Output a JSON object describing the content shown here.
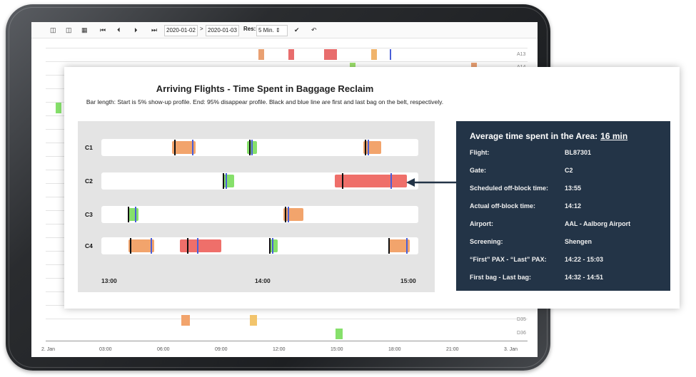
{
  "toolbar": {
    "date_from": "2020-01-02",
    "date_sep": ">",
    "date_to": "2020-01-03",
    "res_label": "Res:",
    "res_value": "5 Min.",
    "res_arrow": "⬍"
  },
  "background": {
    "rows": [
      {
        "label": "A13"
      },
      {
        "label": "A14"
      },
      {
        "label": "D35"
      },
      {
        "label": "D36"
      }
    ],
    "x_ticks": [
      "2. Jan",
      "03:00",
      "06:00",
      "09:00",
      "12:00",
      "15:00",
      "18:00",
      "21:00",
      "3. Jan"
    ]
  },
  "panel": {
    "title": "Arriving Flights - Time Spent in Baggage Reclaim",
    "subtitle": "Bar length: Start is 5% show-up profile. End: 95% disappear profile. Black and blue line are first and last bag on the belt, respectively."
  },
  "chart_data": {
    "type": "gantt",
    "title": "Arriving Flights - Time Spent in Baggage Reclaim",
    "x_ticks": [
      "13:00",
      "14:00",
      "15:00"
    ],
    "x_range": [
      "13:00",
      "15:00"
    ],
    "colors": {
      "orange": "#f2a46c",
      "green": "#86e06b",
      "red": "#ef6f6a",
      "first_bag": "#111111",
      "last_bag": "#4a5fd8"
    },
    "rows": [
      {
        "belt": "C1",
        "flights": [
          {
            "start": "13:26",
            "end": "13:35",
            "first_bag": "13:27",
            "last_bag": "13:34",
            "color": "orange"
          },
          {
            "start": "13:55",
            "end": "13:59",
            "first_bag": "13:56",
            "last_bag": "13:57",
            "color": "green"
          },
          {
            "start": "14:40",
            "end": "14:47",
            "first_bag": "14:41",
            "last_bag": "14:42",
            "color": "orange"
          }
        ]
      },
      {
        "belt": "C2",
        "flights": [
          {
            "start": "13:46",
            "end": "13:50",
            "first_bag": "13:46",
            "last_bag": "13:47",
            "color": "green"
          },
          {
            "start": "14:29",
            "end": "14:57",
            "first_bag": "14:32",
            "last_bag": "14:51",
            "color": "red"
          }
        ]
      },
      {
        "belt": "C3",
        "flights": [
          {
            "start": "13:09",
            "end": "13:13",
            "first_bag": "13:09",
            "last_bag": "13:12",
            "color": "green"
          },
          {
            "start": "14:09",
            "end": "14:17",
            "first_bag": "14:10",
            "last_bag": "14:11",
            "color": "orange"
          }
        ]
      },
      {
        "belt": "C4",
        "flights": [
          {
            "start": "13:09",
            "end": "13:19",
            "first_bag": "13:10",
            "last_bag": "13:18",
            "color": "orange"
          },
          {
            "start": "13:29",
            "end": "13:45",
            "first_bag": "13:32",
            "last_bag": "13:36",
            "color": "red"
          },
          {
            "start": "14:04",
            "end": "14:07",
            "first_bag": "14:04",
            "last_bag": "14:05",
            "color": "green"
          },
          {
            "start": "14:50",
            "end": "14:58",
            "first_bag": "14:50",
            "last_bag": "14:57",
            "color": "orange"
          }
        ]
      }
    ]
  },
  "info": {
    "avg_label": "Average time spent in the Area:",
    "avg_value": "16 min",
    "rows": [
      {
        "key": "Flight:",
        "value": "BL87301"
      },
      {
        "key": "Gate:",
        "value": "C2"
      },
      {
        "key": "Scheduled off-block time:",
        "value": "13:55"
      },
      {
        "key": "Actual off-block time:",
        "value": "14:12"
      },
      {
        "key": "Airport:",
        "value": "AAL - Aalborg Airport"
      },
      {
        "key": "Screening:",
        "value": "Shengen"
      },
      {
        "key": "“First” PAX - “Last” PAX:",
        "value": "14:22 - 15:03"
      },
      {
        "key": "First bag - Last bag:",
        "value": "14:32 - 14:51"
      }
    ]
  }
}
